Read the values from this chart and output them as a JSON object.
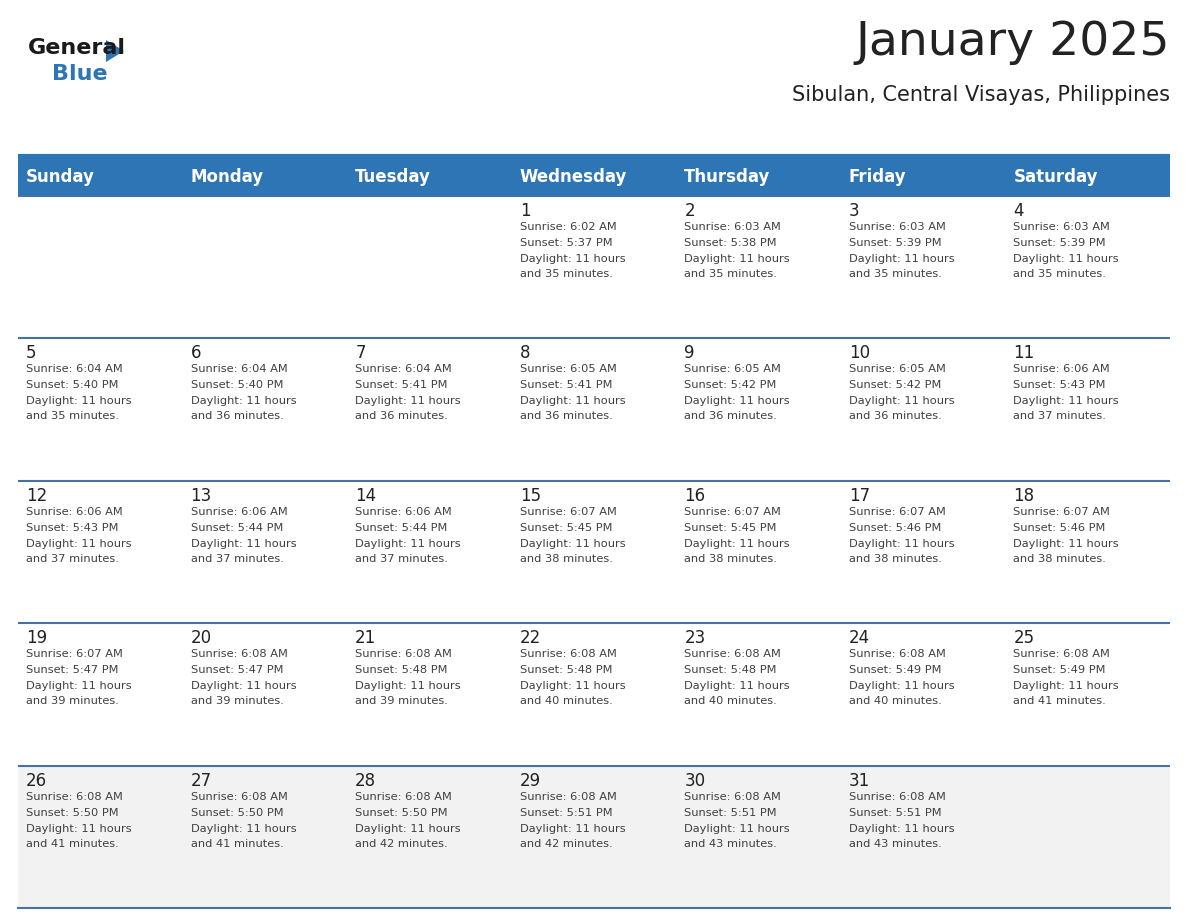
{
  "title": "January 2025",
  "subtitle": "Sibulan, Central Visayas, Philippines",
  "header_bg_color": "#2e75b6",
  "header_text_color": "#ffffff",
  "day_names": [
    "Sunday",
    "Monday",
    "Tuesday",
    "Wednesday",
    "Thursday",
    "Friday",
    "Saturday"
  ],
  "cell_bg_color": "#ffffff",
  "last_row_bg_color": "#f2f2f2",
  "border_color": "#2e75b6",
  "sep_line_color": "#4472a8",
  "text_color": "#404040",
  "day_num_color": "#222222",
  "logo_general_color": "#1a1a1a",
  "logo_blue_color": "#2e75b6",
  "logo_triangle_color": "#2e75b6",
  "weeks": [
    [
      {
        "day": "",
        "sunrise": "",
        "sunset": "",
        "daylight": ""
      },
      {
        "day": "",
        "sunrise": "",
        "sunset": "",
        "daylight": ""
      },
      {
        "day": "",
        "sunrise": "",
        "sunset": "",
        "daylight": ""
      },
      {
        "day": "1",
        "sunrise": "6:02 AM",
        "sunset": "5:37 PM",
        "daylight": "11 hours and 35 minutes."
      },
      {
        "day": "2",
        "sunrise": "6:03 AM",
        "sunset": "5:38 PM",
        "daylight": "11 hours and 35 minutes."
      },
      {
        "day": "3",
        "sunrise": "6:03 AM",
        "sunset": "5:39 PM",
        "daylight": "11 hours and 35 minutes."
      },
      {
        "day": "4",
        "sunrise": "6:03 AM",
        "sunset": "5:39 PM",
        "daylight": "11 hours and 35 minutes."
      }
    ],
    [
      {
        "day": "5",
        "sunrise": "6:04 AM",
        "sunset": "5:40 PM",
        "daylight": "11 hours and 35 minutes."
      },
      {
        "day": "6",
        "sunrise": "6:04 AM",
        "sunset": "5:40 PM",
        "daylight": "11 hours and 36 minutes."
      },
      {
        "day": "7",
        "sunrise": "6:04 AM",
        "sunset": "5:41 PM",
        "daylight": "11 hours and 36 minutes."
      },
      {
        "day": "8",
        "sunrise": "6:05 AM",
        "sunset": "5:41 PM",
        "daylight": "11 hours and 36 minutes."
      },
      {
        "day": "9",
        "sunrise": "6:05 AM",
        "sunset": "5:42 PM",
        "daylight": "11 hours and 36 minutes."
      },
      {
        "day": "10",
        "sunrise": "6:05 AM",
        "sunset": "5:42 PM",
        "daylight": "11 hours and 36 minutes."
      },
      {
        "day": "11",
        "sunrise": "6:06 AM",
        "sunset": "5:43 PM",
        "daylight": "11 hours and 37 minutes."
      }
    ],
    [
      {
        "day": "12",
        "sunrise": "6:06 AM",
        "sunset": "5:43 PM",
        "daylight": "11 hours and 37 minutes."
      },
      {
        "day": "13",
        "sunrise": "6:06 AM",
        "sunset": "5:44 PM",
        "daylight": "11 hours and 37 minutes."
      },
      {
        "day": "14",
        "sunrise": "6:06 AM",
        "sunset": "5:44 PM",
        "daylight": "11 hours and 37 minutes."
      },
      {
        "day": "15",
        "sunrise": "6:07 AM",
        "sunset": "5:45 PM",
        "daylight": "11 hours and 38 minutes."
      },
      {
        "day": "16",
        "sunrise": "6:07 AM",
        "sunset": "5:45 PM",
        "daylight": "11 hours and 38 minutes."
      },
      {
        "day": "17",
        "sunrise": "6:07 AM",
        "sunset": "5:46 PM",
        "daylight": "11 hours and 38 minutes."
      },
      {
        "day": "18",
        "sunrise": "6:07 AM",
        "sunset": "5:46 PM",
        "daylight": "11 hours and 38 minutes."
      }
    ],
    [
      {
        "day": "19",
        "sunrise": "6:07 AM",
        "sunset": "5:47 PM",
        "daylight": "11 hours and 39 minutes."
      },
      {
        "day": "20",
        "sunrise": "6:08 AM",
        "sunset": "5:47 PM",
        "daylight": "11 hours and 39 minutes."
      },
      {
        "day": "21",
        "sunrise": "6:08 AM",
        "sunset": "5:48 PM",
        "daylight": "11 hours and 39 minutes."
      },
      {
        "day": "22",
        "sunrise": "6:08 AM",
        "sunset": "5:48 PM",
        "daylight": "11 hours and 40 minutes."
      },
      {
        "day": "23",
        "sunrise": "6:08 AM",
        "sunset": "5:48 PM",
        "daylight": "11 hours and 40 minutes."
      },
      {
        "day": "24",
        "sunrise": "6:08 AM",
        "sunset": "5:49 PM",
        "daylight": "11 hours and 40 minutes."
      },
      {
        "day": "25",
        "sunrise": "6:08 AM",
        "sunset": "5:49 PM",
        "daylight": "11 hours and 41 minutes."
      }
    ],
    [
      {
        "day": "26",
        "sunrise": "6:08 AM",
        "sunset": "5:50 PM",
        "daylight": "11 hours and 41 minutes."
      },
      {
        "day": "27",
        "sunrise": "6:08 AM",
        "sunset": "5:50 PM",
        "daylight": "11 hours and 41 minutes."
      },
      {
        "day": "28",
        "sunrise": "6:08 AM",
        "sunset": "5:50 PM",
        "daylight": "11 hours and 42 minutes."
      },
      {
        "day": "29",
        "sunrise": "6:08 AM",
        "sunset": "5:51 PM",
        "daylight": "11 hours and 42 minutes."
      },
      {
        "day": "30",
        "sunrise": "6:08 AM",
        "sunset": "5:51 PM",
        "daylight": "11 hours and 43 minutes."
      },
      {
        "day": "31",
        "sunrise": "6:08 AM",
        "sunset": "5:51 PM",
        "daylight": "11 hours and 43 minutes."
      },
      {
        "day": "",
        "sunrise": "",
        "sunset": "",
        "daylight": ""
      }
    ]
  ]
}
